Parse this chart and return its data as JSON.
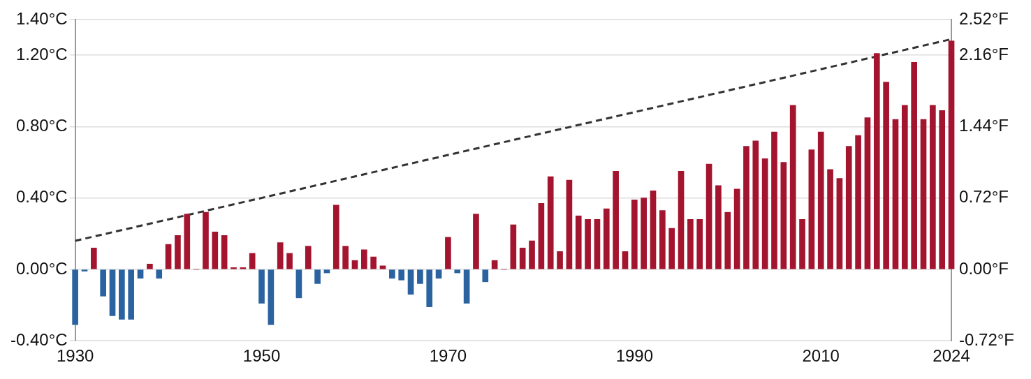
{
  "chart_data": {
    "type": "bar",
    "x": [
      1930,
      1931,
      1932,
      1933,
      1934,
      1935,
      1936,
      1937,
      1938,
      1939,
      1940,
      1941,
      1942,
      1943,
      1944,
      1945,
      1946,
      1947,
      1948,
      1949,
      1950,
      1951,
      1952,
      1953,
      1954,
      1955,
      1956,
      1957,
      1958,
      1959,
      1960,
      1961,
      1962,
      1963,
      1964,
      1965,
      1966,
      1967,
      1968,
      1969,
      1970,
      1971,
      1972,
      1973,
      1974,
      1975,
      1976,
      1977,
      1978,
      1979,
      1980,
      1981,
      1982,
      1983,
      1984,
      1985,
      1986,
      1987,
      1988,
      1989,
      1990,
      1991,
      1992,
      1993,
      1994,
      1995,
      1996,
      1997,
      1998,
      1999,
      2000,
      2001,
      2002,
      2003,
      2004,
      2005,
      2006,
      2007,
      2008,
      2009,
      2010,
      2011,
      2012,
      2013,
      2014,
      2015,
      2016,
      2017,
      2018,
      2019,
      2020,
      2021,
      2022,
      2023,
      2024
    ],
    "series": [
      {
        "values": [
          -0.31,
          -0.01,
          0.12,
          -0.15,
          -0.26,
          -0.28,
          -0.28,
          -0.05,
          0.03,
          -0.05,
          0.14,
          0.19,
          0.31,
          0.0,
          0.32,
          0.21,
          0.19,
          0.01,
          0.01,
          0.09,
          -0.19,
          -0.31,
          0.15,
          0.09,
          -0.16,
          0.13,
          -0.08,
          -0.02,
          0.36,
          0.13,
          0.05,
          0.11,
          0.07,
          0.02,
          -0.05,
          -0.06,
          -0.14,
          -0.08,
          -0.21,
          -0.05,
          0.18,
          -0.02,
          -0.19,
          0.31,
          -0.07,
          0.05,
          0.0,
          0.25,
          0.12,
          0.16,
          0.37,
          0.52,
          0.1,
          0.5,
          0.3,
          0.28,
          0.28,
          0.34,
          0.55,
          0.1,
          0.39,
          0.4,
          0.44,
          0.33,
          0.23,
          0.55,
          0.28,
          0.28,
          0.59,
          0.47,
          0.32,
          0.45,
          0.69,
          0.72,
          0.62,
          0.77,
          0.6,
          0.92,
          0.28,
          0.67,
          0.77,
          0.56,
          0.51,
          0.69,
          0.75,
          0.85,
          1.21,
          1.05,
          0.84,
          0.92,
          1.16,
          0.84,
          0.92,
          0.89,
          1.28
        ],
        "colors": [
          "#2b62a0",
          "#2b62a0",
          "#a3142f",
          "#2b62a0",
          "#2b62a0",
          "#2b62a0",
          "#2b62a0",
          "#2b62a0",
          "#a3142f",
          "#2b62a0",
          "#a3142f",
          "#a3142f",
          "#a3142f",
          "#a3142f",
          "#a3142f",
          "#a3142f",
          "#a3142f",
          "#a3142f",
          "#a3142f",
          "#a3142f",
          "#2b62a0",
          "#2b62a0",
          "#a3142f",
          "#a3142f",
          "#2b62a0",
          "#a3142f",
          "#2b62a0",
          "#2b62a0",
          "#a3142f",
          "#a3142f",
          "#a3142f",
          "#a3142f",
          "#a3142f",
          "#a3142f",
          "#2b62a0",
          "#2b62a0",
          "#2b62a0",
          "#2b62a0",
          "#2b62a0",
          "#2b62a0",
          "#a3142f",
          "#2b62a0",
          "#2b62a0",
          "#a3142f",
          "#2b62a0",
          "#a3142f",
          "#a3142f",
          "#a3142f",
          "#a3142f",
          "#a3142f",
          "#a3142f",
          "#a3142f",
          "#a3142f",
          "#a3142f",
          "#a3142f",
          "#a3142f",
          "#a3142f",
          "#a3142f",
          "#a3142f",
          "#a3142f",
          "#a3142f",
          "#a3142f",
          "#a3142f",
          "#a3142f",
          "#a3142f",
          "#a3142f",
          "#a3142f",
          "#a3142f",
          "#a3142f",
          "#a3142f",
          "#a3142f",
          "#a3142f",
          "#a3142f",
          "#a3142f",
          "#a3142f",
          "#a3142f",
          "#a3142f",
          "#a3142f",
          "#a3142f",
          "#a3142f",
          "#a3142f",
          "#a3142f",
          "#a3142f",
          "#a3142f",
          "#a3142f",
          "#a3142f",
          "#a3142f",
          "#a3142f",
          "#a3142f",
          "#a3142f",
          "#a3142f",
          "#a3142f",
          "#a3142f",
          "#a3142f",
          "#a3142f"
        ]
      },
      {
        "type": "line",
        "x": [
          1930,
          2024
        ],
        "values": [
          0.16,
          1.29
        ],
        "color": "#333333",
        "line_style": "dashed"
      }
    ],
    "xlim": [
      1930,
      2024
    ],
    "xticks": [
      1930,
      1950,
      1970,
      1990,
      2010,
      2024
    ],
    "ylim": [
      -0.4,
      1.4
    ],
    "yticks": [
      {
        "value": -0.4,
        "label": "-0.40°C"
      },
      {
        "value": 0,
        "label": "0.00°C"
      },
      {
        "value": 0.4,
        "label": "0.40°C"
      },
      {
        "value": 0.8,
        "label": "0.80°C"
      },
      {
        "value": 1.2,
        "label": "1.20°C"
      },
      {
        "value": 1.4,
        "label": "1.40°C"
      }
    ],
    "y2lim": [
      -0.72,
      2.52
    ],
    "y2ticks": [
      {
        "value": -0.72,
        "label": "-0.72°F"
      },
      {
        "value": 0,
        "label": "0.00°F"
      },
      {
        "value": 0.72,
        "label": "0.72°F"
      },
      {
        "value": 1.44,
        "label": "1.44°F"
      },
      {
        "value": 2.16,
        "label": "2.16°F"
      },
      {
        "value": 2.52,
        "label": "2.52°F"
      }
    ],
    "grid": "y",
    "legend": false
  }
}
